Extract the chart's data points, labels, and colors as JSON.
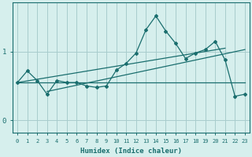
{
  "xlabel": "Humidex (Indice chaleur)",
  "x": [
    0,
    1,
    2,
    3,
    4,
    5,
    6,
    7,
    8,
    9,
    10,
    11,
    12,
    13,
    14,
    15,
    16,
    17,
    18,
    19,
    20,
    21,
    22,
    23
  ],
  "jagged_y": [
    0.55,
    0.72,
    0.58,
    0.38,
    0.58,
    0.55,
    0.55,
    0.5,
    0.48,
    0.5,
    0.73,
    0.83,
    0.98,
    1.32,
    1.52,
    1.3,
    1.12,
    0.9,
    0.98,
    1.03,
    1.15,
    0.88,
    0.35,
    0.38
  ],
  "flat_y": [
    0.55,
    0.55,
    0.55,
    0.55,
    0.55,
    0.55,
    0.55,
    0.55,
    0.55,
    0.55,
    0.55,
    0.55,
    0.55,
    0.55,
    0.55,
    0.55,
    0.55,
    0.55,
    0.55,
    0.55,
    0.55,
    0.55,
    0.55,
    0.55
  ],
  "trend1_x": [
    0,
    21
  ],
  "trend1_y": [
    0.55,
    1.05
  ],
  "trend2_x": [
    3,
    23
  ],
  "trend2_y": [
    0.42,
    1.03
  ],
  "bg_color": "#d6efed",
  "grid_color": "#a8cccc",
  "line_color": "#1a6e6e",
  "yticks": [
    0,
    1
  ],
  "ylim": [
    -0.18,
    1.72
  ],
  "xlim": [
    -0.5,
    23.5
  ]
}
